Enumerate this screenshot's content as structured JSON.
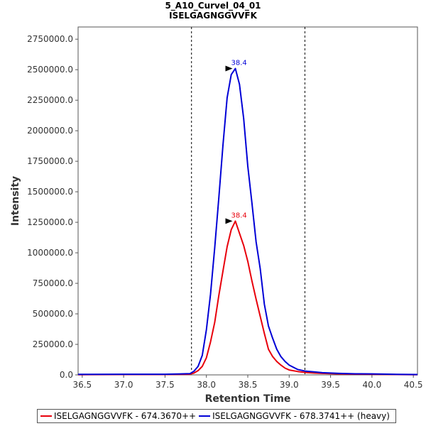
{
  "chart_data": {
    "type": "line",
    "title": "5_A10_Curvel_04_01",
    "subtitle": "ISELGAGNGGVVFK",
    "xlabel": "Retention Time",
    "ylabel": "Intensity",
    "xlim": [
      36.45,
      40.55
    ],
    "ylim": [
      0,
      2850000
    ],
    "xticks": [
      "36.5",
      "37.0",
      "37.5",
      "38.0",
      "38.5",
      "39.0",
      "39.5",
      "40.0",
      "40.5"
    ],
    "xtick_values": [
      36.5,
      37.0,
      37.5,
      38.0,
      38.5,
      39.0,
      39.5,
      40.0,
      40.5
    ],
    "yticks": [
      "0.0",
      "250000.0",
      "500000.0",
      "750000.0",
      "1000000.0",
      "1250000.0",
      "1500000.0",
      "1750000.0",
      "2000000.0",
      "2250000.0",
      "2500000.0",
      "2750000.0"
    ],
    "ytick_values": [
      0,
      250000,
      500000,
      750000,
      1000000,
      1250000,
      1500000,
      1750000,
      2000000,
      2250000,
      2500000,
      2750000
    ],
    "vlines": [
      37.82,
      39.19
    ],
    "grid": false,
    "legend_position": "bottom",
    "series": [
      {
        "name": "ISELGAGNGGVVFK - 674.3670++",
        "color": "#e8000b",
        "peak_label": "38.4",
        "peak_x": 38.35,
        "x": [
          36.45,
          37.0,
          37.5,
          37.8,
          37.85,
          37.9,
          37.95,
          38.0,
          38.05,
          38.1,
          38.15,
          38.2,
          38.25,
          38.3,
          38.35,
          38.4,
          38.45,
          38.5,
          38.55,
          38.6,
          38.65,
          38.7,
          38.75,
          38.8,
          38.85,
          38.9,
          38.95,
          39.0,
          39.1,
          39.2,
          39.3,
          39.4,
          39.5,
          39.6,
          39.8,
          40.0,
          40.3,
          40.55
        ],
        "y": [
          2000,
          3000,
          3000,
          5000,
          15000,
          35000,
          70000,
          140000,
          270000,
          430000,
          650000,
          850000,
          1050000,
          1190000,
          1260000,
          1160000,
          1060000,
          930000,
          770000,
          620000,
          480000,
          340000,
          210000,
          150000,
          110000,
          80000,
          55000,
          40000,
          28000,
          20000,
          15000,
          12000,
          10000,
          8000,
          6000,
          5000,
          3000,
          2000
        ]
      },
      {
        "name": "ISELGAGNGGVVFK - 678.3741++ (heavy)",
        "color": "#0000d6",
        "peak_label": "38.4",
        "peak_x": 38.35,
        "x": [
          36.45,
          37.0,
          37.5,
          37.8,
          37.85,
          37.9,
          37.95,
          38.0,
          38.05,
          38.1,
          38.15,
          38.2,
          38.25,
          38.3,
          38.35,
          38.4,
          38.45,
          38.5,
          38.55,
          38.6,
          38.65,
          38.7,
          38.75,
          38.8,
          38.85,
          38.9,
          38.95,
          39.0,
          39.1,
          39.2,
          39.3,
          39.4,
          39.5,
          39.6,
          39.8,
          40.0,
          40.3,
          40.55
        ],
        "y": [
          4000,
          5000,
          5000,
          10000,
          30000,
          70000,
          160000,
          370000,
          660000,
          1040000,
          1450000,
          1880000,
          2270000,
          2460000,
          2510000,
          2380000,
          2100000,
          1710000,
          1410000,
          1090000,
          870000,
          580000,
          400000,
          300000,
          210000,
          150000,
          110000,
          80000,
          45000,
          30000,
          25000,
          18000,
          15000,
          12000,
          9000,
          8000,
          4000,
          3000
        ]
      }
    ]
  }
}
